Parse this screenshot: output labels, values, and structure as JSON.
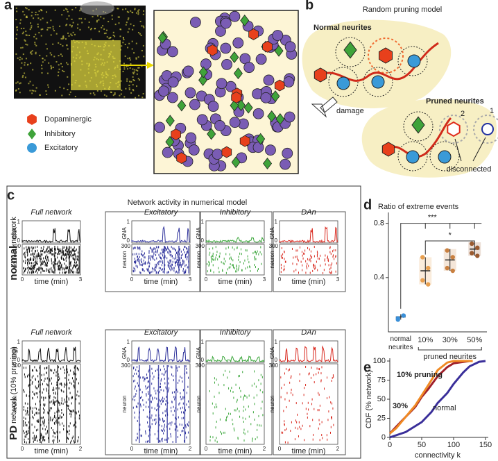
{
  "panel_labels": [
    "a",
    "b",
    "c",
    "d",
    "e"
  ],
  "panel_a": {
    "legend": [
      "Dopaminergic",
      "Inhibitory",
      "Excitatory"
    ],
    "legend_colors": [
      "#e8401c",
      "#3fa33a",
      "#2e2a8c"
    ]
  },
  "panel_b": {
    "title": "Random pruning model",
    "normal_label": "Normal neurites",
    "damage_label": "damage",
    "pruned_label": "Pruned neurites",
    "pruned_markers": [
      "2",
      "1"
    ],
    "disconnected_label": "disconnected"
  },
  "panel_c": {
    "title": "Network activity in numerical model",
    "raster_axes": {
      "gna": "GNA",
      "gna_top": "1",
      "gna_bottom": "0",
      "neuron_top": "300",
      "neuron": "neuron",
      "x_start": "0",
      "x_label": "time (min)"
    },
    "panel_colors": [
      "#111111",
      "#2b2f9a",
      "#3aa63a",
      "#d9281e"
    ],
    "rows": [
      {
        "label_bold": "normal",
        "label_rest": "network",
        "x_end": "3",
        "panels": [
          "Full network",
          "Excitatory",
          "Inhibitory",
          "DAn"
        ]
      },
      {
        "label_bold": "PD",
        "label_rest": "network (10% pruning)",
        "x_end": "2",
        "panels": [
          "Full network",
          "Excitatory",
          "Inhibitory",
          "DAn"
        ]
      }
    ]
  },
  "chart_data": [
    {
      "type": "dot-errorbar",
      "title": "Ratio of extreme events",
      "categories": [
        "normal neurites",
        "10%",
        "30%",
        "50%"
      ],
      "group_label": "pruned neurites",
      "values": [
        0.11,
        0.45,
        0.53,
        0.61
      ],
      "errors": [
        0.02,
        0.1,
        0.08,
        0.05
      ],
      "points": [
        [
          0.1,
          0.12,
          0.09,
          0.12
        ],
        [
          0.55,
          0.47,
          0.38,
          0.35
        ],
        [
          0.6,
          0.55,
          0.47,
          0.45
        ],
        [
          0.65,
          0.62,
          0.58,
          0.56
        ]
      ],
      "colors": [
        "#3a8fd8",
        "#e8a050",
        "#c98040",
        "#9a5a30"
      ],
      "ylim": [
        0,
        0.88
      ],
      "yticks": [
        0.4,
        0.8
      ],
      "annotations": [
        "***",
        "*"
      ]
    },
    {
      "type": "line",
      "ylabel": "CDF (% network)",
      "xlabel": "connectivity k",
      "xlim": [
        0,
        150
      ],
      "ylim": [
        0,
        100
      ],
      "xticks": [
        0,
        50,
        100,
        150
      ],
      "yticks": [
        0,
        25,
        50,
        75,
        100
      ],
      "series": [
        {
          "name": "10% pruning",
          "color": "#f08a24",
          "x": [
            0,
            10,
            25,
            40,
            50,
            60,
            75,
            90,
            100,
            130
          ],
          "values": [
            5,
            12,
            27,
            42,
            55,
            68,
            88,
            98,
            100,
            100
          ]
        },
        {
          "name": "30%",
          "color": "#a0202a",
          "x": [
            0,
            10,
            25,
            40,
            50,
            60,
            75,
            90,
            100,
            125
          ],
          "values": [
            5,
            14,
            27,
            40,
            53,
            63,
            80,
            92,
            97,
            100
          ]
        },
        {
          "name": "normal",
          "color": "#3a2f9a",
          "x": [
            0,
            25,
            50,
            65,
            75,
            90,
            100,
            115,
            125,
            140,
            150
          ],
          "values": [
            0,
            7,
            20,
            33,
            45,
            58,
            70,
            85,
            93,
            99,
            100
          ]
        }
      ]
    }
  ]
}
